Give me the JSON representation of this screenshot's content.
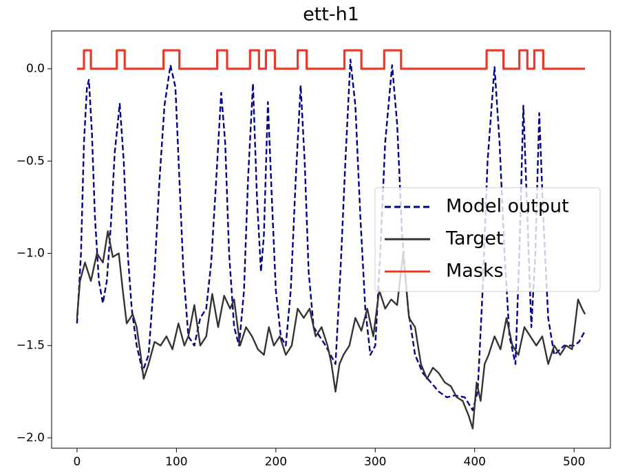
{
  "chart_data": {
    "type": "line",
    "title": "ett-h1",
    "xlim": [
      -25.55,
      536.55
    ],
    "ylim": [
      -2.056,
      0.205
    ],
    "xticks": [
      0,
      100,
      200,
      300,
      400,
      500
    ],
    "yticks": [
      {
        "value": 0,
        "label": "0.0"
      },
      {
        "value": -0.5,
        "label": "−0.5"
      },
      {
        "value": -1,
        "label": "−1.0"
      },
      {
        "value": -1.5,
        "label": "−1.5"
      },
      {
        "value": -2,
        "label": "−2.0"
      }
    ],
    "legend": "center right",
    "series": [
      {
        "name": "Model output",
        "color": "#00008b",
        "dash": "dashed",
        "x": [
          0,
          4,
          7,
          10,
          12,
          15,
          18,
          22,
          26,
          30,
          34,
          38,
          43,
          47,
          51,
          55,
          60,
          66,
          72,
          78,
          83,
          88,
          94,
          99,
          103,
          107,
          112,
          118,
          124,
          130,
          135,
          140,
          145,
          149,
          153,
          158,
          163,
          168,
          172,
          177,
          181,
          185,
          188,
          192,
          196,
          200,
          205,
          210,
          215,
          220,
          225,
          229,
          233,
          238,
          244,
          250,
          255,
          260,
          265,
          270,
          275,
          280,
          285,
          290,
          295,
          300,
          305,
          310,
          317,
          322,
          327,
          333,
          340,
          348,
          356,
          364,
          372,
          380,
          390,
          398,
          403,
          408,
          413,
          420,
          425,
          430,
          435,
          441,
          445,
          449,
          453,
          457,
          461,
          465,
          469,
          474,
          480,
          490,
          500,
          505,
          511
        ],
        "values": [
          -1.38,
          -1.0,
          -0.4,
          -0.1,
          -0.06,
          -0.35,
          -0.8,
          -1.15,
          -1.27,
          -1.15,
          -0.85,
          -0.45,
          -0.19,
          -0.5,
          -1.0,
          -1.3,
          -1.5,
          -1.64,
          -1.55,
          -1.1,
          -0.6,
          -0.2,
          0.02,
          -0.1,
          -0.6,
          -1.1,
          -1.45,
          -1.5,
          -1.35,
          -1.3,
          -1.05,
          -0.6,
          -0.13,
          -0.4,
          -1.0,
          -1.4,
          -1.5,
          -1.2,
          -0.6,
          -0.08,
          -0.7,
          -1.1,
          -0.9,
          -0.18,
          -0.7,
          -1.2,
          -1.45,
          -1.5,
          -1.2,
          -0.6,
          -0.09,
          -0.5,
          -1.1,
          -1.4,
          -1.45,
          -1.5,
          -1.55,
          -1.6,
          -1.1,
          -0.5,
          0.05,
          -0.2,
          -0.8,
          -1.3,
          -1.55,
          -1.5,
          -1.0,
          -0.4,
          0.02,
          -0.3,
          -0.9,
          -1.3,
          -1.55,
          -1.65,
          -1.7,
          -1.75,
          -1.78,
          -1.77,
          -1.78,
          -1.85,
          -1.75,
          -1.2,
          -0.5,
          0.01,
          -0.4,
          -1.0,
          -1.45,
          -1.6,
          -1.0,
          -0.2,
          -0.8,
          -1.4,
          -1.0,
          -0.24,
          -0.8,
          -1.35,
          -1.55,
          -1.5,
          -1.5,
          -1.48,
          -1.42
        ]
      },
      {
        "name": "Target",
        "color": "#333333",
        "dash": "solid",
        "x": [
          0,
          3,
          8,
          14,
          20,
          26,
          31,
          36,
          42,
          46,
          50,
          56,
          60,
          64,
          67,
          72,
          78,
          84,
          90,
          96,
          102,
          108,
          112,
          118,
          124,
          130,
          136,
          142,
          148,
          154,
          158,
          164,
          170,
          176,
          182,
          188,
          193,
          198,
          204,
          210,
          216,
          222,
          228,
          234,
          240,
          246,
          252,
          256,
          260,
          264,
          268,
          274,
          280,
          286,
          292,
          298,
          304,
          310,
          316,
          322,
          328,
          334,
          340,
          346,
          352,
          358,
          364,
          370,
          376,
          382,
          388,
          394,
          398,
          402,
          406,
          410,
          414,
          420,
          426,
          432,
          438,
          444,
          450,
          456,
          462,
          468,
          474,
          480,
          486,
          492,
          498,
          504,
          508,
          511
        ],
        "values": [
          -1.35,
          -1.15,
          -1.05,
          -1.15,
          -1.0,
          -1.05,
          -0.88,
          -1.02,
          -1.0,
          -1.2,
          -1.38,
          -1.33,
          -1.4,
          -1.55,
          -1.68,
          -1.6,
          -1.48,
          -1.5,
          -1.45,
          -1.52,
          -1.38,
          -1.5,
          -1.45,
          -1.28,
          -1.5,
          -1.45,
          -1.22,
          -1.4,
          -1.23,
          -1.3,
          -1.25,
          -1.5,
          -1.4,
          -1.45,
          -1.52,
          -1.55,
          -1.4,
          -1.5,
          -1.45,
          -1.55,
          -1.5,
          -1.3,
          -1.35,
          -1.3,
          -1.45,
          -1.4,
          -1.5,
          -1.6,
          -1.75,
          -1.6,
          -1.55,
          -1.5,
          -1.35,
          -1.42,
          -1.3,
          -1.45,
          -1.2,
          -1.3,
          -1.25,
          -1.28,
          -1.0,
          -1.35,
          -1.4,
          -1.6,
          -1.68,
          -1.62,
          -1.65,
          -1.7,
          -1.72,
          -1.78,
          -1.8,
          -1.88,
          -1.95,
          -1.7,
          -1.8,
          -1.6,
          -1.55,
          -1.45,
          -1.52,
          -1.35,
          -1.5,
          -1.55,
          -1.4,
          -1.45,
          -1.5,
          -1.45,
          -1.6,
          -1.5,
          -1.55,
          -1.5,
          -1.52,
          -1.25,
          -1.3,
          -1.33
        ]
      },
      {
        "name": "Masks",
        "color": "#e8392a",
        "dash": "solid",
        "x": [
          0,
          7,
          7,
          14,
          14,
          40,
          40,
          48,
          48,
          87,
          87,
          103,
          103,
          141,
          141,
          151,
          151,
          174,
          174,
          183,
          183,
          190,
          190,
          199,
          199,
          222,
          222,
          231,
          231,
          269,
          269,
          286,
          286,
          309,
          309,
          326,
          326,
          412,
          412,
          429,
          429,
          445,
          445,
          453,
          453,
          460,
          460,
          469,
          469,
          511
        ],
        "values": [
          0,
          0,
          0.1,
          0.1,
          0,
          0,
          0.1,
          0.1,
          0,
          0,
          0.1,
          0.1,
          0,
          0,
          0.1,
          0.1,
          0,
          0,
          0.1,
          0.1,
          0,
          0,
          0.1,
          0.1,
          0,
          0,
          0.1,
          0.1,
          0,
          0,
          0.1,
          0.1,
          0,
          0,
          0.1,
          0.1,
          0,
          0,
          0.1,
          0.1,
          0,
          0,
          0.1,
          0.1,
          0,
          0,
          0.1,
          0.1,
          0,
          0
        ]
      }
    ]
  }
}
